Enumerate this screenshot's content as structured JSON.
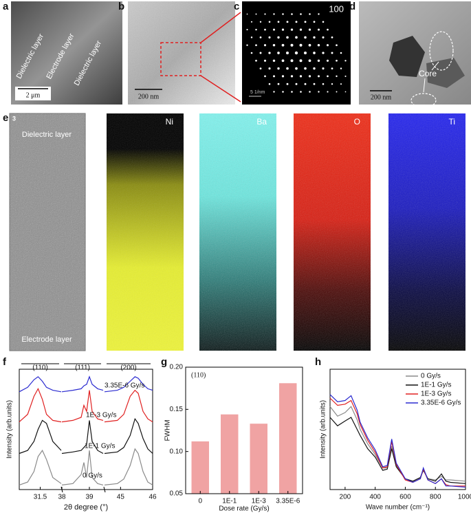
{
  "panels": {
    "a": {
      "label": "a",
      "texts": [
        "Dielectric layer",
        "Electrode layer",
        "Dielectric layer"
      ],
      "scale": "2 μm"
    },
    "b": {
      "label": "b",
      "scale": "200 nm"
    },
    "c": {
      "label": "c",
      "index": "100",
      "scale": "5 1/nm"
    },
    "d": {
      "label": "d",
      "annotation": "Core",
      "scale": "200 nm"
    },
    "e": {
      "label": "e",
      "corner": "3",
      "top": "Dielectric layer",
      "bottom": "Electrode layer",
      "maps": [
        "Ni",
        "Ba",
        "O",
        "Ti"
      ]
    }
  },
  "chart_data": [
    {
      "type": "broken-line",
      "label": "f",
      "ylabel": "Intensity (arb.units)",
      "xlabel": "2θ degree (°)",
      "ylim": [
        0,
        4
      ],
      "series": [
        {
          "name": "3.35E-6 Gy/s",
          "color": "#2a2ad0"
        },
        {
          "name": "1E-3 Gy/s",
          "color": "#e02020"
        },
        {
          "name": "1E-1 Gy/s",
          "color": "#111111"
        },
        {
          "name": "0 Gy/s",
          "color": "#8a8a8a"
        }
      ],
      "segments": [
        {
          "title": "(110)",
          "xlim": [
            31,
            32
          ],
          "xticks": [
            31.5
          ],
          "x": [
            31,
            31.2,
            31.35,
            31.45,
            31.55,
            31.65,
            31.8,
            32
          ],
          "values": [
            [
              3.25,
              3.4,
              3.65,
              3.75,
              3.6,
              3.4,
              3.3,
              3.25
            ],
            [
              2.25,
              2.5,
              3.1,
              3.35,
              3.0,
              2.5,
              2.3,
              2.25
            ],
            [
              1.2,
              1.3,
              1.6,
              2.0,
              2.3,
              2.2,
              1.6,
              1.3
            ],
            [
              0.15,
              0.25,
              0.6,
              1.1,
              1.3,
              1.0,
              0.4,
              0.2
            ]
          ]
        },
        {
          "title": "(111)",
          "xlim": [
            38,
            39.5
          ],
          "xticks": [
            38,
            39
          ],
          "x": [
            38,
            38.4,
            38.7,
            38.8,
            38.9,
            39,
            39.1,
            39.3,
            39.5
          ],
          "values": [
            [
              3.25,
              3.3,
              3.35,
              3.45,
              3.5,
              3.75,
              3.5,
              3.35,
              3.3
            ],
            [
              2.25,
              2.3,
              2.4,
              2.8,
              2.6,
              3.3,
              2.6,
              2.35,
              2.3
            ],
            [
              1.2,
              1.25,
              1.3,
              1.4,
              1.5,
              2.3,
              1.6,
              1.3,
              1.2
            ],
            [
              0.15,
              0.2,
              0.5,
              0.9,
              0.4,
              1.3,
              0.4,
              0.2,
              0.15
            ]
          ]
        },
        {
          "title": "(200)",
          "xlim": [
            44.5,
            46
          ],
          "xticks": [
            45,
            46
          ],
          "x": [
            44.5,
            44.9,
            45.1,
            45.3,
            45.45,
            45.55,
            45.7,
            45.85,
            46
          ],
          "values": [
            [
              3.25,
              3.3,
              3.4,
              3.6,
              3.75,
              3.7,
              3.5,
              3.35,
              3.3
            ],
            [
              2.25,
              2.3,
              2.5,
              3.1,
              3.3,
              3.2,
              2.6,
              2.35,
              2.25
            ],
            [
              1.2,
              1.25,
              1.4,
              1.8,
              2.35,
              2.2,
              1.7,
              1.35,
              1.2
            ],
            [
              0.15,
              0.2,
              0.35,
              0.8,
              1.35,
              1.2,
              0.6,
              0.25,
              0.15
            ]
          ]
        }
      ]
    },
    {
      "type": "bar",
      "label": "g",
      "annotation": "(110)",
      "ylabel": "FWHM",
      "xlabel": "Dose rate (Gy/s)",
      "categories": [
        "0",
        "1E-1",
        "1E-3",
        "3.35E-6"
      ],
      "values": [
        0.112,
        0.144,
        0.133,
        0.181
      ],
      "color": "#f0a3a3",
      "ylim": [
        0.05,
        0.2
      ],
      "yticks": [
        0.05,
        {
          "value": 0.1,
          "label": "0.10"
        },
        0.15,
        {
          "value": 0.2,
          "label": "0.20"
        }
      ]
    },
    {
      "type": "line",
      "label": "h",
      "ylabel": "Intensity (arb.units)",
      "xlabel": "Wave number (cm⁻¹)",
      "xlim": [
        100,
        1000
      ],
      "xticks": [
        200,
        400,
        600,
        800,
        1000
      ],
      "ylim": [
        0,
        10
      ],
      "x": [
        100,
        150,
        200,
        240,
        280,
        300,
        350,
        400,
        450,
        480,
        510,
        540,
        600,
        650,
        700,
        720,
        750,
        800,
        840,
        870,
        900,
        1000
      ],
      "series": [
        {
          "name": "0 Gy/s",
          "color": "#8a8a8a",
          "values": [
            6.9,
            6.1,
            6.4,
            6.9,
            5.8,
            5.0,
            3.8,
            2.9,
            1.8,
            1.8,
            3.6,
            2.0,
            0.9,
            0.7,
            1.0,
            1.7,
            0.9,
            0.8,
            1.1,
            0.8,
            0.8,
            0.7
          ]
        },
        {
          "name": "1E-1 Gy/s",
          "color": "#111111",
          "values": [
            6.0,
            5.3,
            5.7,
            6.0,
            5.0,
            4.5,
            3.4,
            2.7,
            1.6,
            1.7,
            3.4,
            1.9,
            0.9,
            0.7,
            1.0,
            1.6,
            0.9,
            0.7,
            1.3,
            0.7,
            0.6,
            0.5
          ]
        },
        {
          "name": "1E-3 Gy/s",
          "color": "#e02020",
          "values": [
            7.6,
            7.0,
            7.1,
            7.4,
            6.3,
            5.4,
            4.1,
            3.1,
            1.8,
            1.9,
            4.0,
            2.1,
            0.8,
            0.6,
            0.9,
            1.7,
            0.8,
            0.5,
            0.9,
            0.4,
            0.3,
            0.3
          ]
        },
        {
          "name": "3.35E-6 Gy/s",
          "color": "#2a2ad0",
          "values": [
            7.9,
            7.3,
            7.4,
            7.8,
            6.6,
            5.6,
            4.3,
            3.3,
            1.9,
            2.0,
            4.2,
            2.2,
            0.9,
            0.6,
            0.9,
            1.8,
            0.8,
            0.5,
            0.9,
            0.3,
            0.3,
            0.2
          ]
        }
      ]
    }
  ]
}
